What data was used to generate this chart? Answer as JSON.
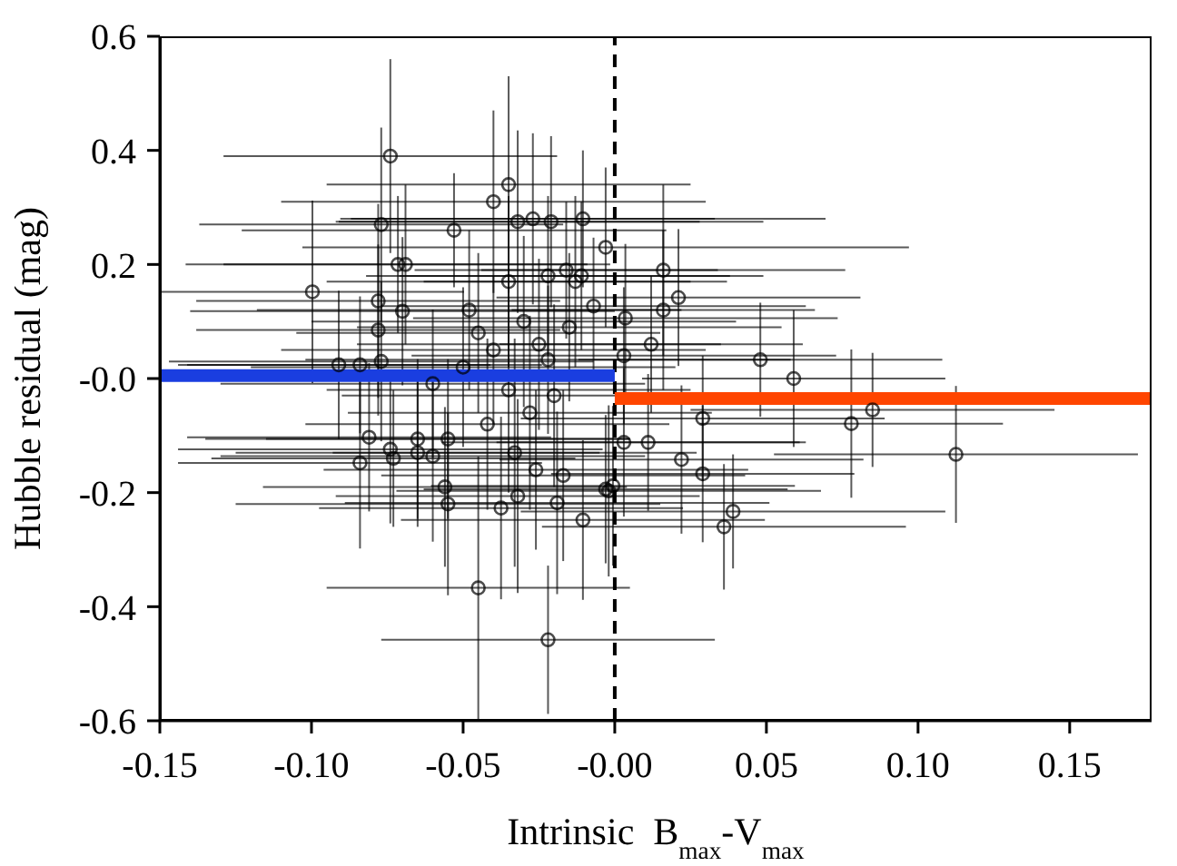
{
  "chart_data": {
    "type": "scatter",
    "xlabel": "Intrinsic  B$_{max}$-V$_{max}$",
    "ylabel": "Hubble residual (mag)",
    "xlim": [
      -0.15,
      0.177
    ],
    "xticks": [
      {
        "value": -0.15,
        "label": "-0.15"
      },
      {
        "value": -0.1,
        "label": "-0.10"
      },
      {
        "value": -0.05,
        "label": "-0.05"
      },
      {
        "value": 0,
        "label": "-0.00"
      },
      {
        "value": 0.05,
        "label": "0.05"
      },
      {
        "value": 0.1,
        "label": "0.10"
      },
      {
        "value": 0.15,
        "label": "0.15"
      }
    ],
    "ylim": [
      -0.6,
      0.6
    ],
    "yticks": [
      -0.6,
      -0.4,
      -0.2,
      {
        "value": 0,
        "label": "-0.0"
      },
      0.2,
      0.4,
      0.6
    ],
    "ref_lines": [
      {
        "axis": "x",
        "value": 0,
        "color": "#000000",
        "line_style": "dashed"
      }
    ],
    "series": [
      {
        "color": "#000000",
        "marker": "circle",
        "x": [
          -0.0997,
          -0.074,
          -0.077,
          -0.0715,
          -0.069,
          -0.053,
          -0.04,
          -0.035,
          -0.032,
          -0.027,
          -0.021,
          -0.0105,
          -0.003,
          -0.035,
          -0.022,
          -0.016,
          -0.011,
          -0.013,
          -0.078,
          -0.078,
          -0.07,
          -0.007,
          0.0035,
          -0.084,
          -0.077,
          -0.022,
          0.003,
          -0.091,
          -0.081,
          -0.084,
          -0.074,
          -0.073,
          -0.065,
          -0.065,
          -0.06,
          -0.055,
          -0.056,
          -0.055,
          -0.0375,
          -0.032,
          -0.026,
          -0.017,
          -0.019,
          -0.0105,
          -0.002,
          -0.0006,
          0.003,
          -0.045,
          -0.022,
          -0.06,
          0.016,
          0.021,
          0.016,
          0.012,
          0.048,
          0.059,
          0.029,
          0.078,
          0.085,
          0.1125,
          0.011,
          0.022,
          0.029,
          0.039,
          0.036,
          -0.003,
          -0.045,
          -0.04,
          -0.035,
          -0.03,
          -0.028,
          -0.05,
          -0.025,
          -0.02,
          -0.042,
          -0.015,
          -0.033,
          -0.048
        ],
        "values": [
          0.152,
          0.39,
          0.27,
          0.2,
          0.2,
          0.26,
          0.31,
          0.34,
          0.275,
          0.28,
          0.275,
          0.28,
          0.23,
          0.17,
          0.18,
          0.19,
          0.18,
          0.17,
          0.136,
          0.085,
          0.118,
          0.127,
          0.106,
          0.024,
          0.03,
          0.033,
          0.04,
          0.024,
          -0.103,
          -0.148,
          -0.124,
          -0.14,
          -0.106,
          -0.13,
          -0.136,
          -0.106,
          -0.19,
          -0.22,
          -0.227,
          -0.206,
          -0.16,
          -0.17,
          -0.218,
          -0.248,
          -0.197,
          -0.188,
          -0.112,
          -0.367,
          -0.458,
          -0.009,
          0.19,
          0.142,
          0.12,
          0.06,
          0.033,
          0.0,
          -0.07,
          -0.079,
          -0.055,
          -0.133,
          -0.112,
          -0.142,
          -0.167,
          -0.233,
          -0.26,
          -0.194,
          0.08,
          0.05,
          -0.02,
          0.1,
          -0.06,
          0.02,
          0.06,
          -0.03,
          -0.08,
          0.09,
          -0.13,
          0.12
        ],
        "xerrors": [
          0.05,
          0.055,
          0.06,
          0.07,
          0.06,
          0.07,
          0.07,
          0.06,
          0.06,
          0.06,
          0.07,
          0.08,
          0.1,
          0.06,
          0.06,
          0.05,
          0.06,
          0.05,
          0.06,
          0.06,
          0.07,
          0.07,
          0.07,
          0.06,
          0.07,
          0.08,
          0.07,
          0.05,
          0.06,
          0.06,
          0.07,
          0.06,
          0.07,
          0.06,
          0.07,
          0.06,
          0.06,
          0.07,
          0.06,
          0.06,
          0.07,
          0.06,
          0.07,
          0.06,
          0.07,
          0.06,
          0.06,
          0.05,
          0.055,
          0.07,
          0.06,
          0.06,
          0.05,
          0.05,
          0.06,
          0.05,
          0.06,
          0.05,
          0.06,
          0.06,
          0.05,
          0.06,
          0.05,
          0.07,
          0.06,
          0.06,
          0.06,
          0.07,
          0.06,
          0.07,
          0.06,
          0.07,
          0.06,
          0.07,
          0.06,
          0.07,
          0.06,
          0.07
        ],
        "errors": [
          0.16,
          0.17,
          0.17,
          0.12,
          0.14,
          0.1,
          0.16,
          0.19,
          0.16,
          0.15,
          0.15,
          0.12,
          0.14,
          0.15,
          0.14,
          0.12,
          0.13,
          0.15,
          0.17,
          0.15,
          0.13,
          0.12,
          0.13,
          0.12,
          0.14,
          0.13,
          0.12,
          0.13,
          0.13,
          0.15,
          0.13,
          0.12,
          0.14,
          0.13,
          0.15,
          0.14,
          0.14,
          0.16,
          0.16,
          0.17,
          0.14,
          0.15,
          0.16,
          0.14,
          0.15,
          0.14,
          0.13,
          0.23,
          0.13,
          0.13,
          0.15,
          0.12,
          0.14,
          0.12,
          0.1,
          0.12,
          0.11,
          0.13,
          0.1,
          0.12,
          0.12,
          0.13,
          0.12,
          0.1,
          0.11,
          0.13,
          0.14,
          0.13,
          0.18,
          0.15,
          0.17,
          0.14,
          0.15,
          0.16,
          0.15,
          0.13,
          0.2,
          0.14
        ]
      },
      {
        "type": "line",
        "color": "#1a3ee0",
        "marker": "none",
        "line_style": "solid",
        "x": [
          -0.15,
          0
        ],
        "values": [
          0.005,
          0.005
        ]
      },
      {
        "type": "line",
        "color": "#ff4500",
        "marker": "none",
        "line_style": "solid",
        "x": [
          0,
          0.177
        ],
        "values": [
          -0.035,
          -0.035
        ]
      }
    ]
  }
}
